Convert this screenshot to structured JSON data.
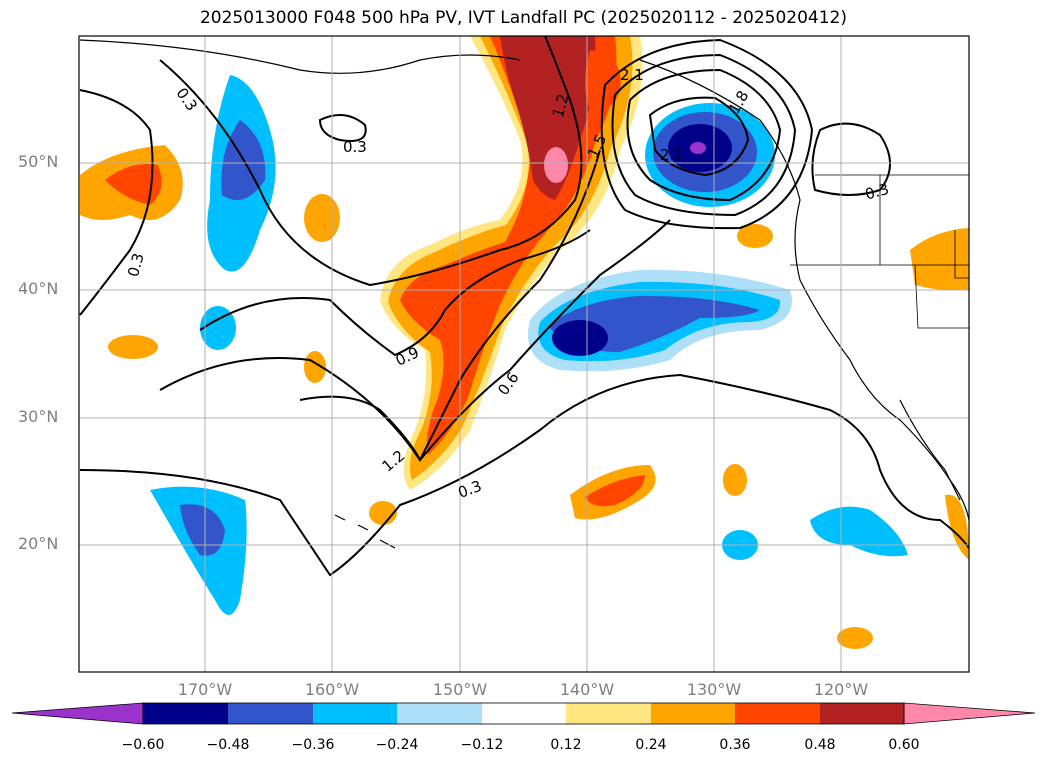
{
  "title": "2025013000 F048 500 hPa PV, IVT Landfall PC (2025020112 - 2025020412)",
  "map": {
    "lat_ticks": [
      {
        "lat": 50,
        "label": "50°N"
      },
      {
        "lat": 40,
        "label": "40°N"
      },
      {
        "lat": 30,
        "label": "30°N"
      },
      {
        "lat": 20,
        "label": "20°N"
      }
    ],
    "lon_ticks": [
      {
        "lon": -170,
        "label": "170°W"
      },
      {
        "lon": -160,
        "label": "160°W"
      },
      {
        "lon": -150,
        "label": "150°W"
      },
      {
        "lon": -140,
        "label": "140°W"
      },
      {
        "lon": -130,
        "label": "130°W"
      },
      {
        "lon": -120,
        "label": "120°W"
      }
    ],
    "lon_range": [
      -180,
      -110
    ],
    "lat_range": [
      10,
      60
    ],
    "grid": true
  },
  "contour_labels": [
    "0.3",
    "0.3",
    "0.3",
    "0.9",
    "0.6",
    "1.2",
    "0.3",
    "1.2",
    "1.5",
    "2.1",
    "1.8",
    "2.1",
    "0.3"
  ],
  "colorbar": {
    "ticks": [
      "−0.60",
      "−0.48",
      "−0.36",
      "−0.24",
      "−0.12",
      "0.12",
      "0.24",
      "0.36",
      "0.48",
      "0.60"
    ],
    "colors": [
      "#9933cc",
      "#00008b",
      "#3355cc",
      "#00bfff",
      "#ade0f8",
      "#ffffff",
      "#ffe680",
      "#ffa500",
      "#ff4500",
      "#b22222",
      "#ff88aa"
    ]
  }
}
